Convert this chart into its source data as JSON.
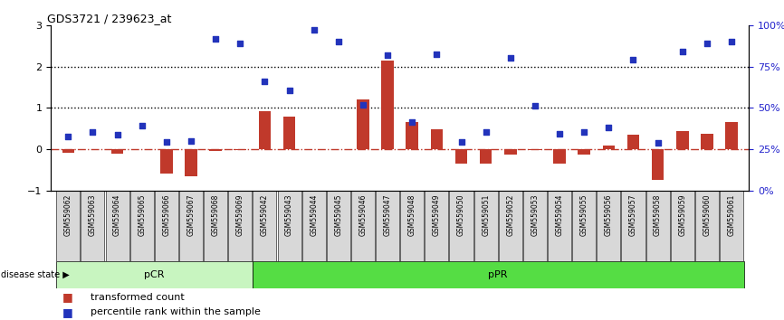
{
  "title": "GDS3721 / 239623_at",
  "samples": [
    "GSM559062",
    "GSM559063",
    "GSM559064",
    "GSM559065",
    "GSM559066",
    "GSM559067",
    "GSM559068",
    "GSM559069",
    "GSM559042",
    "GSM559043",
    "GSM559044",
    "GSM559045",
    "GSM559046",
    "GSM559047",
    "GSM559048",
    "GSM559049",
    "GSM559050",
    "GSM559051",
    "GSM559052",
    "GSM559053",
    "GSM559054",
    "GSM559055",
    "GSM559056",
    "GSM559057",
    "GSM559058",
    "GSM559059",
    "GSM559060",
    "GSM559061"
  ],
  "transformed_count": [
    -0.08,
    0.0,
    -0.1,
    0.0,
    -0.6,
    -0.65,
    -0.05,
    -0.02,
    0.92,
    0.8,
    0.0,
    0.0,
    1.2,
    2.15,
    0.65,
    0.48,
    -0.35,
    -0.35,
    -0.12,
    -0.02,
    -0.35,
    -0.12,
    0.08,
    0.35,
    -0.75,
    0.45,
    0.38,
    0.65
  ],
  "percentile_rank": [
    0.3,
    0.42,
    0.35,
    0.58,
    0.18,
    0.2,
    2.67,
    2.57,
    1.65,
    1.43,
    2.9,
    2.62,
    1.07,
    2.28,
    0.67,
    2.3,
    0.18,
    0.42,
    2.22,
    1.05,
    0.38,
    0.42,
    0.52,
    2.17,
    0.15,
    2.37,
    2.57,
    2.62
  ],
  "pCR_count": 8,
  "pPR_count": 20,
  "bar_color": "#c0392b",
  "dot_color": "#2233bb",
  "pCR_color": "#c8f5c0",
  "pPR_color": "#55dd44",
  "ylim": [
    -1,
    3
  ],
  "yticks_left": [
    -1,
    0,
    1,
    2,
    3
  ],
  "right_tick_positions": [
    -1,
    0,
    1,
    2,
    3
  ],
  "right_tick_labels": [
    "0%",
    "25%",
    "50%",
    "75%",
    "100%"
  ],
  "dotted_line_values": [
    1,
    2
  ],
  "dashed_line_value": 0,
  "right_axis_label_color": "#2222cc",
  "background_color": "#ffffff",
  "legend_bar_label": "transformed count",
  "legend_dot_label": "percentile rank within the sample",
  "disease_state_label": "disease state",
  "pCR_label": "pCR",
  "pPR_label": "pPR",
  "bar_width": 0.5,
  "tick_label_bg": "#d8d8d8"
}
